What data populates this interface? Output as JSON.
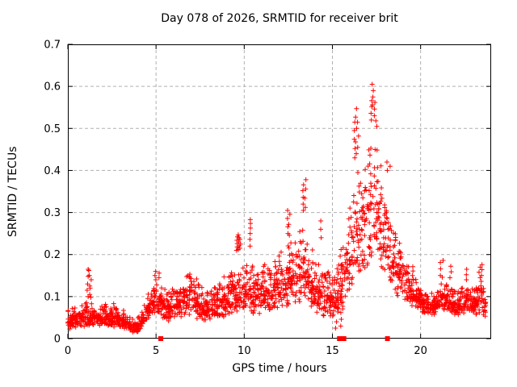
{
  "chart_data": {
    "type": "scatter",
    "title": "Day 078 of 2026, SRMTID for receiver brit",
    "xlabel": "GPS time / hours",
    "ylabel": "SRMTID / TECUs",
    "xlim": [
      0,
      24
    ],
    "ylim": [
      0,
      0.7
    ],
    "xticks": [
      0,
      5,
      10,
      15,
      20
    ],
    "xtick_labels": [
      "0",
      "5",
      "10",
      "15",
      "20"
    ],
    "yticks": [
      0,
      0.1,
      0.2,
      0.3,
      0.4,
      0.5,
      0.6,
      0.7
    ],
    "ytick_labels": [
      "0",
      "0.1",
      "0.2",
      "0.3",
      "0.4",
      "0.5",
      "0.6",
      "0.7"
    ],
    "grid": true,
    "legend": "none",
    "marker": "+",
    "marker_color": "#ff0000",
    "grid_color": "#b0b0b0",
    "axis_color": "#000000",
    "background": "#ffffff",
    "max_point": {
      "hour": 17.3,
      "tecu": 0.605
    },
    "data_start_hour": 0.0,
    "data_end_hour": 23.7,
    "density_per_hour": 92,
    "seed": 78,
    "envelope": [
      [
        0.0,
        0.02,
        0.07
      ],
      [
        0.4,
        0.025,
        0.075
      ],
      [
        0.8,
        0.028,
        0.085
      ],
      [
        1.1,
        0.03,
        0.105
      ],
      [
        1.4,
        0.03,
        0.085
      ],
      [
        1.8,
        0.03,
        0.08
      ],
      [
        2.2,
        0.03,
        0.085
      ],
      [
        2.6,
        0.028,
        0.085
      ],
      [
        3.0,
        0.025,
        0.072
      ],
      [
        3.4,
        0.02,
        0.062
      ],
      [
        3.8,
        0.013,
        0.05
      ],
      [
        4.1,
        0.018,
        0.06
      ],
      [
        4.5,
        0.045,
        0.105
      ],
      [
        4.9,
        0.06,
        0.15
      ],
      [
        5.3,
        0.05,
        0.14
      ],
      [
        5.7,
        0.04,
        0.12
      ],
      [
        6.1,
        0.045,
        0.135
      ],
      [
        6.6,
        0.055,
        0.16
      ],
      [
        7.0,
        0.055,
        0.165
      ],
      [
        7.4,
        0.045,
        0.145
      ],
      [
        7.8,
        0.038,
        0.125
      ],
      [
        8.2,
        0.042,
        0.135
      ],
      [
        8.6,
        0.048,
        0.15
      ],
      [
        9.0,
        0.052,
        0.16
      ],
      [
        9.4,
        0.06,
        0.175
      ],
      [
        9.8,
        0.062,
        0.185
      ],
      [
        10.2,
        0.065,
        0.195
      ],
      [
        10.6,
        0.055,
        0.175
      ],
      [
        11.0,
        0.058,
        0.18
      ],
      [
        11.4,
        0.062,
        0.185
      ],
      [
        11.8,
        0.068,
        0.2
      ],
      [
        12.2,
        0.072,
        0.225
      ],
      [
        12.6,
        0.078,
        0.245
      ],
      [
        13.0,
        0.082,
        0.265
      ],
      [
        13.4,
        0.088,
        0.295
      ],
      [
        13.7,
        0.08,
        0.24
      ],
      [
        14.1,
        0.062,
        0.21
      ],
      [
        14.5,
        0.052,
        0.19
      ],
      [
        14.9,
        0.042,
        0.17
      ],
      [
        15.2,
        0.045,
        0.185
      ],
      [
        15.5,
        0.06,
        0.23
      ],
      [
        15.8,
        0.09,
        0.29
      ],
      [
        16.1,
        0.12,
        0.38
      ],
      [
        16.4,
        0.14,
        0.47
      ],
      [
        16.7,
        0.15,
        0.465
      ],
      [
        17.0,
        0.165,
        0.5
      ],
      [
        17.3,
        0.19,
        0.545
      ],
      [
        17.6,
        0.17,
        0.48
      ],
      [
        17.9,
        0.145,
        0.405
      ],
      [
        18.2,
        0.125,
        0.345
      ],
      [
        18.5,
        0.11,
        0.285
      ],
      [
        18.8,
        0.098,
        0.235
      ],
      [
        19.1,
        0.086,
        0.198
      ],
      [
        19.5,
        0.076,
        0.168
      ],
      [
        19.9,
        0.066,
        0.138
      ],
      [
        20.3,
        0.058,
        0.118
      ],
      [
        20.7,
        0.055,
        0.112
      ],
      [
        21.1,
        0.06,
        0.135
      ],
      [
        21.5,
        0.062,
        0.148
      ],
      [
        21.9,
        0.052,
        0.122
      ],
      [
        22.3,
        0.056,
        0.132
      ],
      [
        22.7,
        0.06,
        0.142
      ],
      [
        23.1,
        0.055,
        0.122
      ],
      [
        23.4,
        0.06,
        0.15
      ],
      [
        23.7,
        0.05,
        0.1
      ]
    ],
    "spikes": [
      [
        1.12,
        [
          0.1,
          0.115,
          0.13,
          0.148,
          0.165
        ]
      ],
      [
        1.22,
        [
          0.105,
          0.125,
          0.15,
          0.162
        ]
      ],
      [
        1.3,
        [
          0.098,
          0.12,
          0.14
        ]
      ],
      [
        4.95,
        [
          0.14,
          0.15,
          0.16
        ]
      ],
      [
        5.15,
        [
          0.145,
          0.156
        ]
      ],
      [
        9.6,
        [
          0.21,
          0.218,
          0.226,
          0.234,
          0.242
        ]
      ],
      [
        9.68,
        [
          0.212,
          0.221,
          0.23,
          0.24,
          0.247
        ]
      ],
      [
        9.75,
        [
          0.215,
          0.225,
          0.236
        ]
      ],
      [
        10.33,
        [
          0.22,
          0.236,
          0.25,
          0.263,
          0.274,
          0.283
        ]
      ],
      [
        12.45,
        [
          0.25,
          0.266,
          0.286,
          0.305
        ]
      ],
      [
        12.56,
        [
          0.246,
          0.272,
          0.296
        ]
      ],
      [
        13.35,
        [
          0.305,
          0.32,
          0.336,
          0.352,
          0.366
        ]
      ],
      [
        13.46,
        [
          0.312,
          0.334,
          0.356,
          0.378
        ]
      ],
      [
        14.35,
        [
          0.24,
          0.26,
          0.28
        ]
      ],
      [
        15.2,
        [
          0.025,
          0.04
        ]
      ],
      [
        15.5,
        [
          0.03,
          0.046,
          0.062
        ]
      ],
      [
        16.25,
        [
          0.43,
          0.452,
          0.474,
          0.495,
          0.515
        ]
      ],
      [
        16.35,
        [
          0.44,
          0.468,
          0.5,
          0.527,
          0.547
        ]
      ],
      [
        16.45,
        [
          0.455,
          0.482,
          0.515
        ]
      ],
      [
        17.2,
        [
          0.52,
          0.536,
          0.552,
          0.566
        ]
      ],
      [
        17.28,
        [
          0.556,
          0.575,
          0.59,
          0.605
        ]
      ],
      [
        17.38,
        [
          0.53,
          0.546,
          0.562
        ]
      ],
      [
        17.5,
        [
          0.505,
          0.518
        ]
      ],
      [
        18.1,
        [
          0.4,
          0.42
        ]
      ],
      [
        18.28,
        [
          0.41
        ]
      ],
      [
        19.55,
        [
          0.15,
          0.161,
          0.171
        ]
      ],
      [
        21.15,
        [
          0.15,
          0.166,
          0.181
        ]
      ],
      [
        21.25,
        [
          0.146,
          0.186
        ]
      ],
      [
        21.7,
        [
          0.145,
          0.159,
          0.172
        ]
      ],
      [
        22.6,
        [
          0.14,
          0.152,
          0.165
        ]
      ],
      [
        23.35,
        [
          0.145,
          0.158,
          0.17
        ]
      ],
      [
        23.45,
        [
          0.15,
          0.164,
          0.176
        ]
      ]
    ],
    "zero_marker_hours": [
      5.27,
      15.4,
      15.65,
      18.12
    ]
  }
}
